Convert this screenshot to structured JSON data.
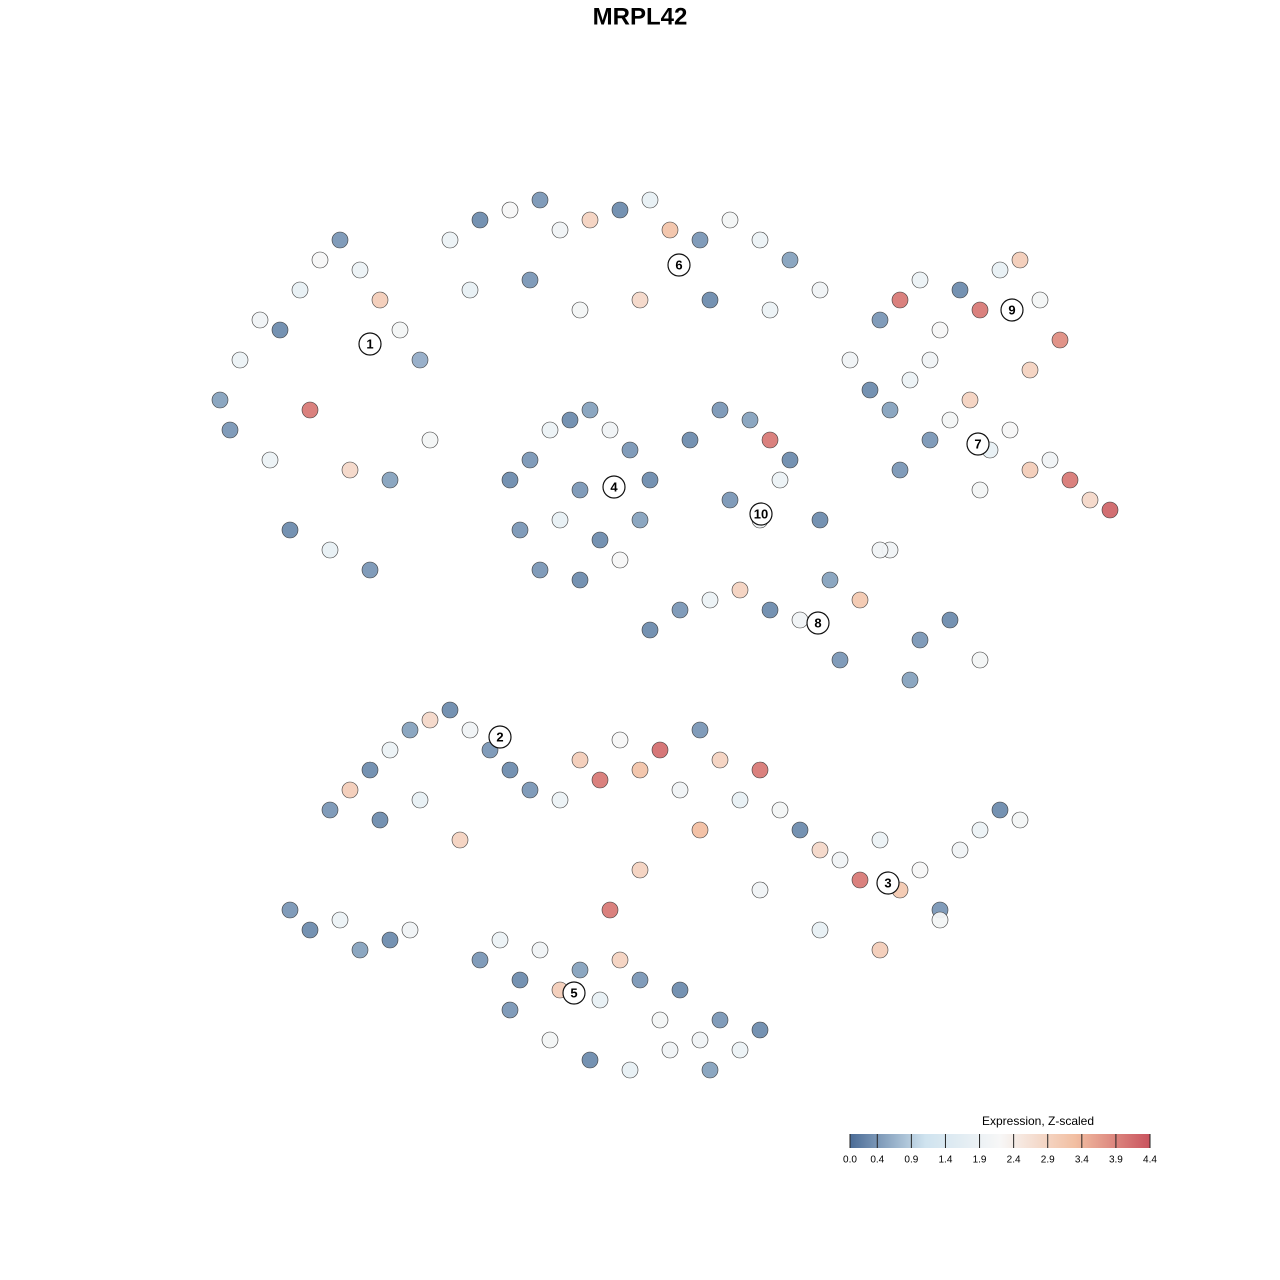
{
  "chart_data": {
    "type": "scatter",
    "title": "MRPL42",
    "x": [
      2,
      4,
      6,
      8,
      10,
      12,
      14,
      16,
      18,
      20,
      22,
      3,
      7,
      11,
      15,
      19,
      23,
      9,
      13,
      17,
      25,
      28,
      31,
      34,
      36,
      39,
      42,
      45,
      47,
      50,
      53,
      56,
      59,
      62,
      27,
      33,
      38,
      44,
      51,
      57,
      68,
      70,
      72,
      74,
      76,
      78,
      80,
      82,
      84,
      86,
      73,
      83,
      65,
      67,
      69,
      71,
      73,
      75,
      77,
      79,
      81,
      83,
      85,
      87,
      89,
      91,
      70,
      78,
      31,
      33,
      35,
      37,
      39,
      41,
      43,
      45,
      32,
      36,
      40,
      44,
      34,
      38,
      42,
      38,
      49,
      52,
      55,
      57,
      59,
      53,
      56,
      58,
      45,
      48,
      51,
      54,
      57,
      60,
      63,
      66,
      69,
      72,
      75,
      78,
      64,
      68,
      71,
      62,
      13,
      15,
      17,
      19,
      21,
      23,
      25,
      27,
      29,
      31,
      33,
      18,
      22,
      26,
      9,
      11,
      14,
      16,
      19,
      21,
      36,
      38,
      40,
      42,
      44,
      46,
      48,
      50,
      52,
      54,
      56,
      58,
      60,
      62,
      64,
      66,
      68,
      70,
      72,
      74,
      76,
      78,
      80,
      82,
      44,
      50,
      56,
      62,
      68,
      74,
      28,
      30,
      32,
      34,
      36,
      38,
      40,
      42,
      44,
      46,
      48,
      50,
      52,
      54,
      56,
      31,
      35,
      39,
      43,
      47,
      51,
      41
    ],
    "y": [
      70,
      74,
      78,
      77,
      81,
      84,
      86,
      83,
      80,
      77,
      74,
      67,
      64,
      69,
      63,
      62,
      66,
      57,
      55,
      53,
      86,
      88,
      89,
      90,
      87,
      88,
      89,
      90,
      87,
      86,
      88,
      86,
      84,
      81,
      81,
      82,
      79,
      80,
      80,
      79,
      78,
      80,
      82,
      77,
      81,
      79,
      83,
      84,
      80,
      76,
      74,
      73,
      74,
      71,
      69,
      72,
      66,
      68,
      70,
      65,
      67,
      63,
      64,
      62,
      60,
      59,
      63,
      61,
      62,
      64,
      67,
      68,
      69,
      67,
      65,
      62,
      57,
      58,
      56,
      58,
      53,
      52,
      54,
      61,
      66,
      69,
      68,
      66,
      64,
      60,
      58,
      62,
      47,
      49,
      50,
      51,
      49,
      48,
      52,
      50,
      55,
      46,
      48,
      44,
      44,
      55,
      42,
      58,
      29,
      31,
      33,
      35,
      37,
      38,
      39,
      37,
      35,
      33,
      31,
      28,
      30,
      26,
      19,
      17,
      18,
      15,
      16,
      17,
      30,
      34,
      32,
      36,
      33,
      35,
      31,
      37,
      34,
      30,
      33,
      29,
      27,
      25,
      24,
      22,
      26,
      21,
      23,
      19,
      25,
      27,
      29,
      28,
      23,
      27,
      21,
      17,
      15,
      18,
      14,
      16,
      12,
      15,
      11,
      13,
      10,
      14,
      12,
      8,
      11,
      6,
      8,
      5,
      7,
      9,
      6,
      4,
      3,
      5,
      3,
      19
    ],
    "values": [
      0.5,
      1.9,
      2.0,
      0.3,
      1.8,
      2.2,
      0.4,
      1.9,
      3.0,
      2.1,
      0.6,
      0.4,
      1.9,
      4.0,
      2.8,
      0.5,
      2.1,
      0.3,
      1.8,
      0.4,
      1.9,
      0.3,
      2.2,
      0.4,
      2.0,
      2.9,
      0.3,
      1.8,
      3.2,
      0.4,
      2.1,
      1.9,
      0.5,
      2.0,
      1.8,
      0.4,
      2.1,
      2.8,
      0.3,
      1.9,
      0.4,
      4.0,
      1.9,
      2.2,
      0.3,
      4.0,
      1.8,
      3.0,
      2.1,
      3.8,
      2.0,
      2.9,
      2.0,
      0.3,
      0.5,
      1.9,
      0.4,
      2.1,
      2.9,
      1.8,
      2.2,
      3.0,
      2.0,
      4.0,
      2.8,
      4.2,
      0.4,
      2.1,
      0.3,
      0.4,
      1.9,
      0.3,
      0.5,
      2.0,
      0.4,
      0.3,
      0.4,
      1.8,
      0.3,
      0.5,
      0.4,
      0.3,
      2.2,
      0.4,
      0.3,
      0.4,
      0.5,
      4.0,
      0.3,
      0.4,
      2.0,
      1.9,
      0.3,
      0.4,
      1.9,
      2.9,
      0.3,
      2.0,
      0.5,
      3.1,
      2.0,
      0.4,
      0.3,
      2.1,
      0.4,
      2.0,
      0.5,
      0.3,
      0.4,
      3.0,
      0.3,
      1.9,
      0.5,
      2.8,
      0.3,
      2.0,
      0.4,
      0.3,
      0.4,
      0.3,
      1.8,
      2.9,
      0.4,
      0.3,
      1.9,
      0.5,
      0.3,
      2.0,
      1.9,
      3.0,
      4.0,
      2.2,
      3.2,
      4.1,
      2.0,
      0.4,
      2.9,
      1.8,
      4.0,
      2.1,
      0.3,
      2.8,
      2.0,
      4.0,
      1.9,
      3.1,
      2.2,
      0.4,
      2.0,
      1.9,
      0.3,
      2.1,
      2.9,
      3.3,
      2.0,
      1.8,
      3.0,
      2.1,
      0.4,
      1.9,
      0.3,
      2.0,
      3.0,
      0.5,
      1.8,
      2.9,
      0.4,
      2.1,
      0.3,
      2.0,
      0.4,
      1.9,
      0.3,
      0.4,
      2.1,
      0.3,
      1.8,
      2.0,
      0.5,
      4.0
    ],
    "clusters": [
      {
        "label": "1",
        "x": 17,
        "y": 75.6
      },
      {
        "label": "2",
        "x": 30,
        "y": 36.3
      },
      {
        "label": "3",
        "x": 68.8,
        "y": 21.7
      },
      {
        "label": "4",
        "x": 41.4,
        "y": 61.3
      },
      {
        "label": "5",
        "x": 37.4,
        "y": 10.7
      },
      {
        "label": "6",
        "x": 47.9,
        "y": 83.5
      },
      {
        "label": "7",
        "x": 77.8,
        "y": 65.6
      },
      {
        "label": "8",
        "x": 61.8,
        "y": 47.7
      },
      {
        "label": "9",
        "x": 81.2,
        "y": 79
      },
      {
        "label": "10",
        "x": 56.1,
        "y": 58.6
      }
    ],
    "colorbar": {
      "title": "Expression, Z-scaled",
      "ticks": [
        {
          "value": 0,
          "label": "0.0"
        },
        0.4,
        0.9,
        1.4,
        1.9,
        2.4,
        2.9,
        3.4,
        3.9,
        4.4
      ],
      "colorscale": [
        "#4a6b96",
        "#cfe3ef",
        "#f7f7f7",
        "#f2bfa2",
        "#c9535e"
      ]
    }
  }
}
